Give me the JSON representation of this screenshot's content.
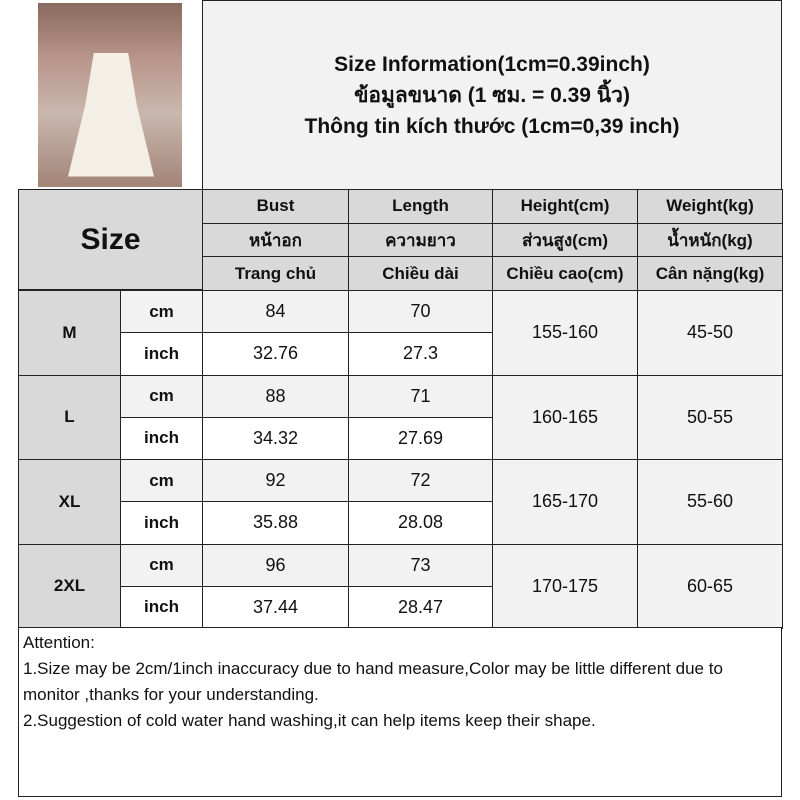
{
  "title": {
    "line1": "Size Information(1cm=0.39inch)",
    "line2": "ข้อมูลขนาด (1 ซม. = 0.39 นิ้ว)",
    "line3": "Thông tin kích thước (1cm=0,39 inch)"
  },
  "size_header": "Size",
  "columns": [
    {
      "en": "Bust",
      "th": "หน้าอก",
      "vi": "Trang chủ"
    },
    {
      "en": "Length",
      "th": "ความยาว",
      "vi": "Chiều dài"
    },
    {
      "en": "Height(cm)",
      "th": "ส่วนสูง(cm)",
      "vi": "Chiều cao(cm)"
    },
    {
      "en": "Weight(kg)",
      "th": "น้ำหนัก(kg)",
      "vi": "Cân nặng(kg)"
    }
  ],
  "rows": [
    {
      "size": "M",
      "cm_label": "cm",
      "inch_label": "inch",
      "bust_cm": "84",
      "length_cm": "70",
      "bust_inch": "32.76",
      "length_inch": "27.3",
      "height": "155-160",
      "weight": "45-50"
    },
    {
      "size": "L",
      "cm_label": "cm",
      "inch_label": "inch",
      "bust_cm": "88",
      "length_cm": "71",
      "bust_inch": "34.32",
      "length_inch": "27.69",
      "height": "160-165",
      "weight": "50-55"
    },
    {
      "size": "XL",
      "cm_label": "cm",
      "inch_label": "inch",
      "bust_cm": "92",
      "length_cm": "72",
      "bust_inch": "35.88",
      "length_inch": "28.08",
      "height": "165-170",
      "weight": "55-60"
    },
    {
      "size": "2XL",
      "cm_label": "cm",
      "inch_label": "inch",
      "bust_cm": "96",
      "length_cm": "73",
      "bust_inch": "37.44",
      "length_inch": "28.47",
      "height": "170-175",
      "weight": "60-65"
    }
  ],
  "attention": {
    "heading": "Attention:",
    "note1": "1.Size may be 2cm/1inch inaccuracy due to hand measure,Color may be little different due to monitor ,thanks for your understanding.",
    "note2": "2.Suggestion of cold water hand washing,it can help items keep their shape."
  }
}
